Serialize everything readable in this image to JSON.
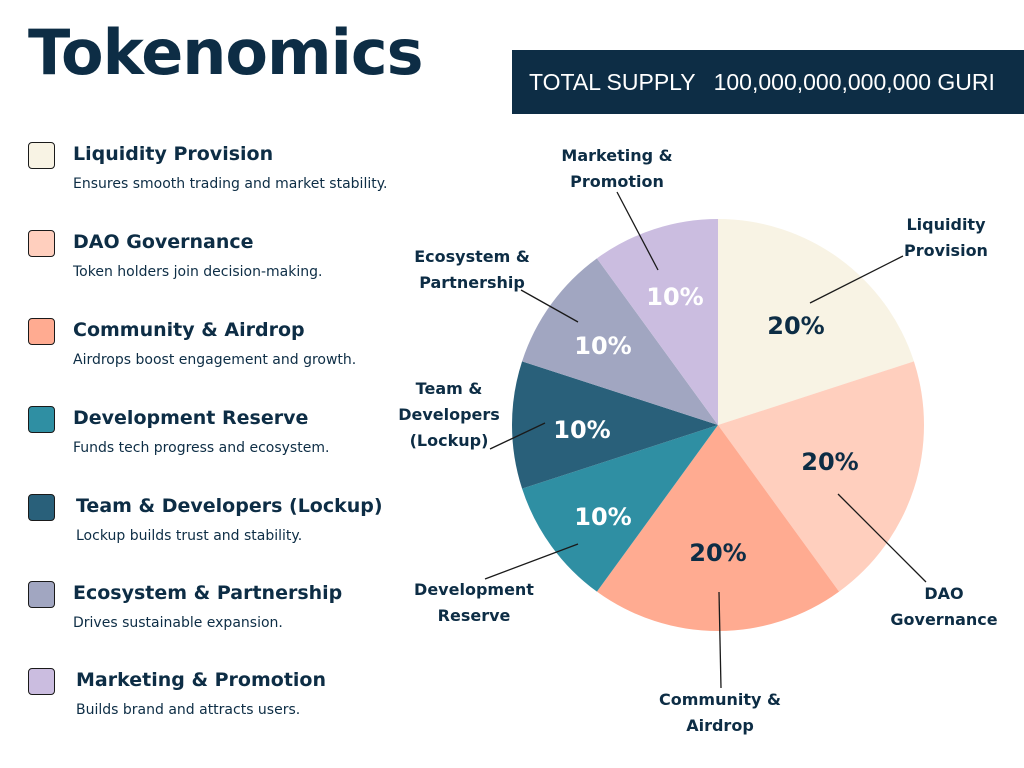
{
  "header": {
    "title": "Tokenomics",
    "supply_label": "TOTAL SUPPLY",
    "supply_value": "100,000,000,000,000 GURI"
  },
  "legend": [
    {
      "name": "Liquidity Provision",
      "desc": "Ensures smooth trading and market stability.",
      "color": "#f8f3e4"
    },
    {
      "name": "DAO Governance",
      "desc": "Token holders join decision-making.",
      "color": "#ffcfbe"
    },
    {
      "name": "Community & Airdrop",
      "desc": "Airdrops boost engagement and growth.",
      "color": "#ffab91"
    },
    {
      "name": "Development Reserve",
      "desc": "Funds tech progress and ecosystem.",
      "color": "#2f8fa3"
    },
    {
      "name": "Team & Developers (Lockup)",
      "desc": "Lockup builds trust and stability.",
      "color": "#29607a"
    },
    {
      "name": "Ecosystem & Partnership",
      "desc": "Drives sustainable expansion.",
      "color": "#a1a6c1"
    },
    {
      "name": "Marketing & Promotion",
      "desc": "Builds brand and attracts users.",
      "color": "#cbbde0"
    }
  ],
  "chart_data": {
    "type": "pie",
    "title": "",
    "slices": [
      {
        "label_lines": [
          "Liquidity",
          "Provision"
        ],
        "value": 20,
        "value_label": "20%",
        "color": "#f8f3e4",
        "text_color": "#0d2d45"
      },
      {
        "label_lines": [
          "DAO",
          "Governance"
        ],
        "value": 20,
        "value_label": "20%",
        "color": "#ffcfbe",
        "text_color": "#0d2d45"
      },
      {
        "label_lines": [
          "Community &",
          "Airdrop"
        ],
        "value": 20,
        "value_label": "20%",
        "color": "#ffab91",
        "text_color": "#0d2d45"
      },
      {
        "label_lines": [
          "Development",
          "Reserve"
        ],
        "value": 10,
        "value_label": "10%",
        "color": "#2f8fa3",
        "text_color": "#ffffff"
      },
      {
        "label_lines": [
          "Team &",
          "Developers",
          "(Lockup)"
        ],
        "value": 10,
        "value_label": "10%",
        "color": "#29607a",
        "text_color": "#ffffff"
      },
      {
        "label_lines": [
          "Ecosystem &",
          "Partnership"
        ],
        "value": 10,
        "value_label": "10%",
        "color": "#a1a6c1",
        "text_color": "#ffffff"
      },
      {
        "label_lines": [
          "Marketing &",
          "Promotion"
        ],
        "value": 10,
        "value_label": "10%",
        "color": "#cbbde0",
        "text_color": "#ffffff"
      }
    ]
  }
}
